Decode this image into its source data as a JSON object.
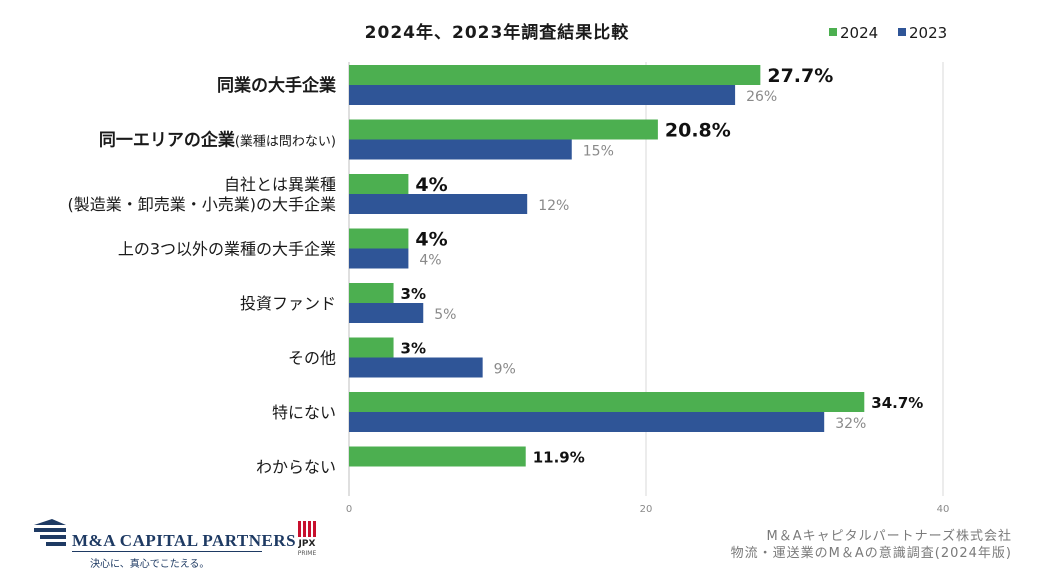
{
  "chart_data": {
    "type": "bar",
    "orientation": "horizontal",
    "title": "2024年、2023年調査結果比較",
    "series": [
      {
        "name": "2024",
        "color": "#4caf50"
      },
      {
        "name": "2023",
        "color": "#2f5597"
      }
    ],
    "categories": [
      {
        "label_lines": [
          "同業の大手企業"
        ],
        "bold": "全",
        "v2024": 27.7,
        "v2023": 26,
        "l2024": "27.7%",
        "l2023": "26%"
      },
      {
        "label_lines": [
          "同一エリアの企業(業種は問わない)"
        ],
        "bold": "前",
        "v2024": 20.8,
        "v2023": 15,
        "l2024": "20.8%",
        "l2023": "15%"
      },
      {
        "label_lines": [
          "自社とは異業種",
          "(製造業・卸売業・小売業)の大手企業"
        ],
        "bold": "",
        "v2024": 4,
        "v2023": 12,
        "l2024": "4%",
        "l2023": "12%"
      },
      {
        "label_lines": [
          "上の3つ以外の業種の大手企業"
        ],
        "bold": "",
        "v2024": 4,
        "v2023": 4,
        "l2024": "4%",
        "l2023": "4%"
      },
      {
        "label_lines": [
          "投資ファンド"
        ],
        "bold": "",
        "v2024": 3,
        "v2023": 5,
        "l2024": "3%",
        "l2023": "5%"
      },
      {
        "label_lines": [
          "その他"
        ],
        "bold": "",
        "v2024": 3,
        "v2023": 9,
        "l2024": "3%",
        "l2023": "9%"
      },
      {
        "label_lines": [
          "特にない"
        ],
        "bold": "",
        "v2024": 34.7,
        "v2023": 32,
        "l2024": "34.7%",
        "l2023": "32%"
      },
      {
        "label_lines": [
          "わからない"
        ],
        "bold": "",
        "v2024": 11.9,
        "v2023": null,
        "l2024": "11.9%",
        "l2023": null
      }
    ],
    "xlim": [
      0,
      40
    ],
    "xticks": [
      "0",
      "20",
      "40"
    ],
    "grid": true,
    "legend_position": "top-right"
  },
  "footer": {
    "company_line": "M＆Aキャピタルパートナーズ株式会社",
    "survey_line": "物流・運送業のM＆Aの意識調査(2024年版)"
  },
  "logo": {
    "name": "M&A CAPITAL PARTNERS",
    "tagline": "決心に、真心でこたえる。",
    "jpx_text": "JPX",
    "jpx_sub": "PRIME"
  }
}
